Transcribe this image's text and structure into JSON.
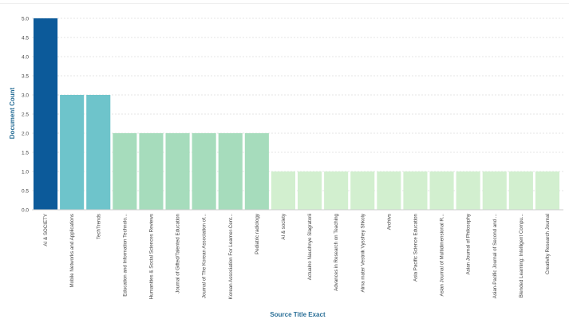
{
  "chart_data": {
    "type": "bar",
    "title": "",
    "xlabel": "Source Title Exact",
    "ylabel": "Document Count",
    "ylim": [
      0,
      5
    ],
    "yticks": [
      "0.0",
      "0.5",
      "1.0",
      "1.5",
      "2.0",
      "2.5",
      "3.0",
      "3.5",
      "4.0",
      "4.5",
      "5.0"
    ],
    "grid": true,
    "legend": "none",
    "categories": [
      "AI & SOCIETY",
      "Mobile Networks and Applications",
      "TechTrends",
      "Education and Information Technolo...",
      "Humanities & Social Sciences Reviews",
      "Journal of Gifted/Talented Education",
      "Journal of The Korean Association of...",
      "Korean Association For Learner-Cent...",
      "Pediatric radiology",
      "AI & society",
      "Actualno Nauchnye Slagratorii",
      "Advances in Research on Teaching",
      "Alma mater Vestnik Vysshey Shkoly",
      "Archivs",
      "Asia Pacific Science Education",
      "Asian Journal of Multidimensional R...",
      "Asian Journal of Philosophy",
      "Asian-Pacific Journal of Second and ...",
      "Blended Learning: Intelligent Compu...",
      "Creativity Research Journal"
    ],
    "values": [
      5,
      3,
      3,
      2,
      2,
      2,
      2,
      2,
      2,
      1,
      1,
      1,
      1,
      1,
      1,
      1,
      1,
      1,
      1,
      1
    ],
    "colors": {
      "5": "#0c5a9a",
      "3": "#6ec4cb",
      "2": "#a6dcbc",
      "1": "#d2efcf"
    }
  }
}
